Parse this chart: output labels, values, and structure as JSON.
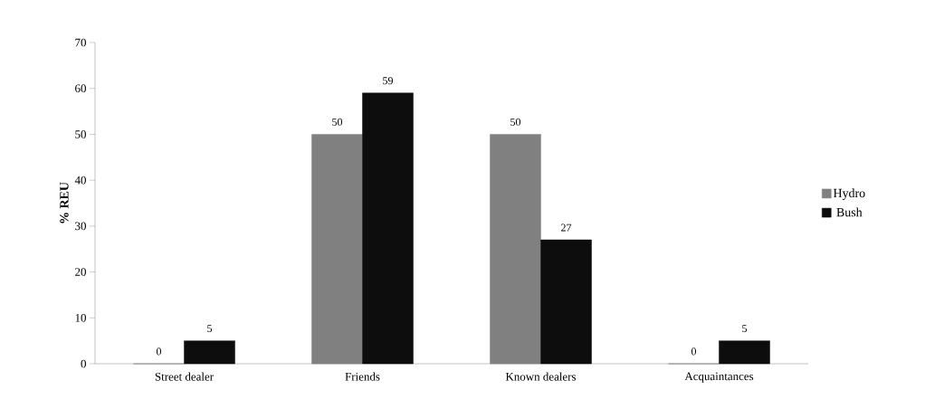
{
  "chart_data": {
    "type": "bar",
    "ylabel": "% REU",
    "categories": [
      "Street dealer",
      "Friends",
      "Known dealers",
      "Acquaintances"
    ],
    "series": [
      {
        "name": "Hydro",
        "color": "#808080",
        "values": [
          0,
          50,
          50,
          0
        ]
      },
      {
        "name": "Bush",
        "color": "#0d0d0d",
        "values": [
          5,
          59,
          27,
          5
        ]
      }
    ],
    "ylim": [
      0,
      70
    ],
    "yticks": [
      0,
      10,
      20,
      30,
      40,
      50,
      60,
      70
    ],
    "data_labels": true,
    "legend": "right",
    "grid": false
  }
}
